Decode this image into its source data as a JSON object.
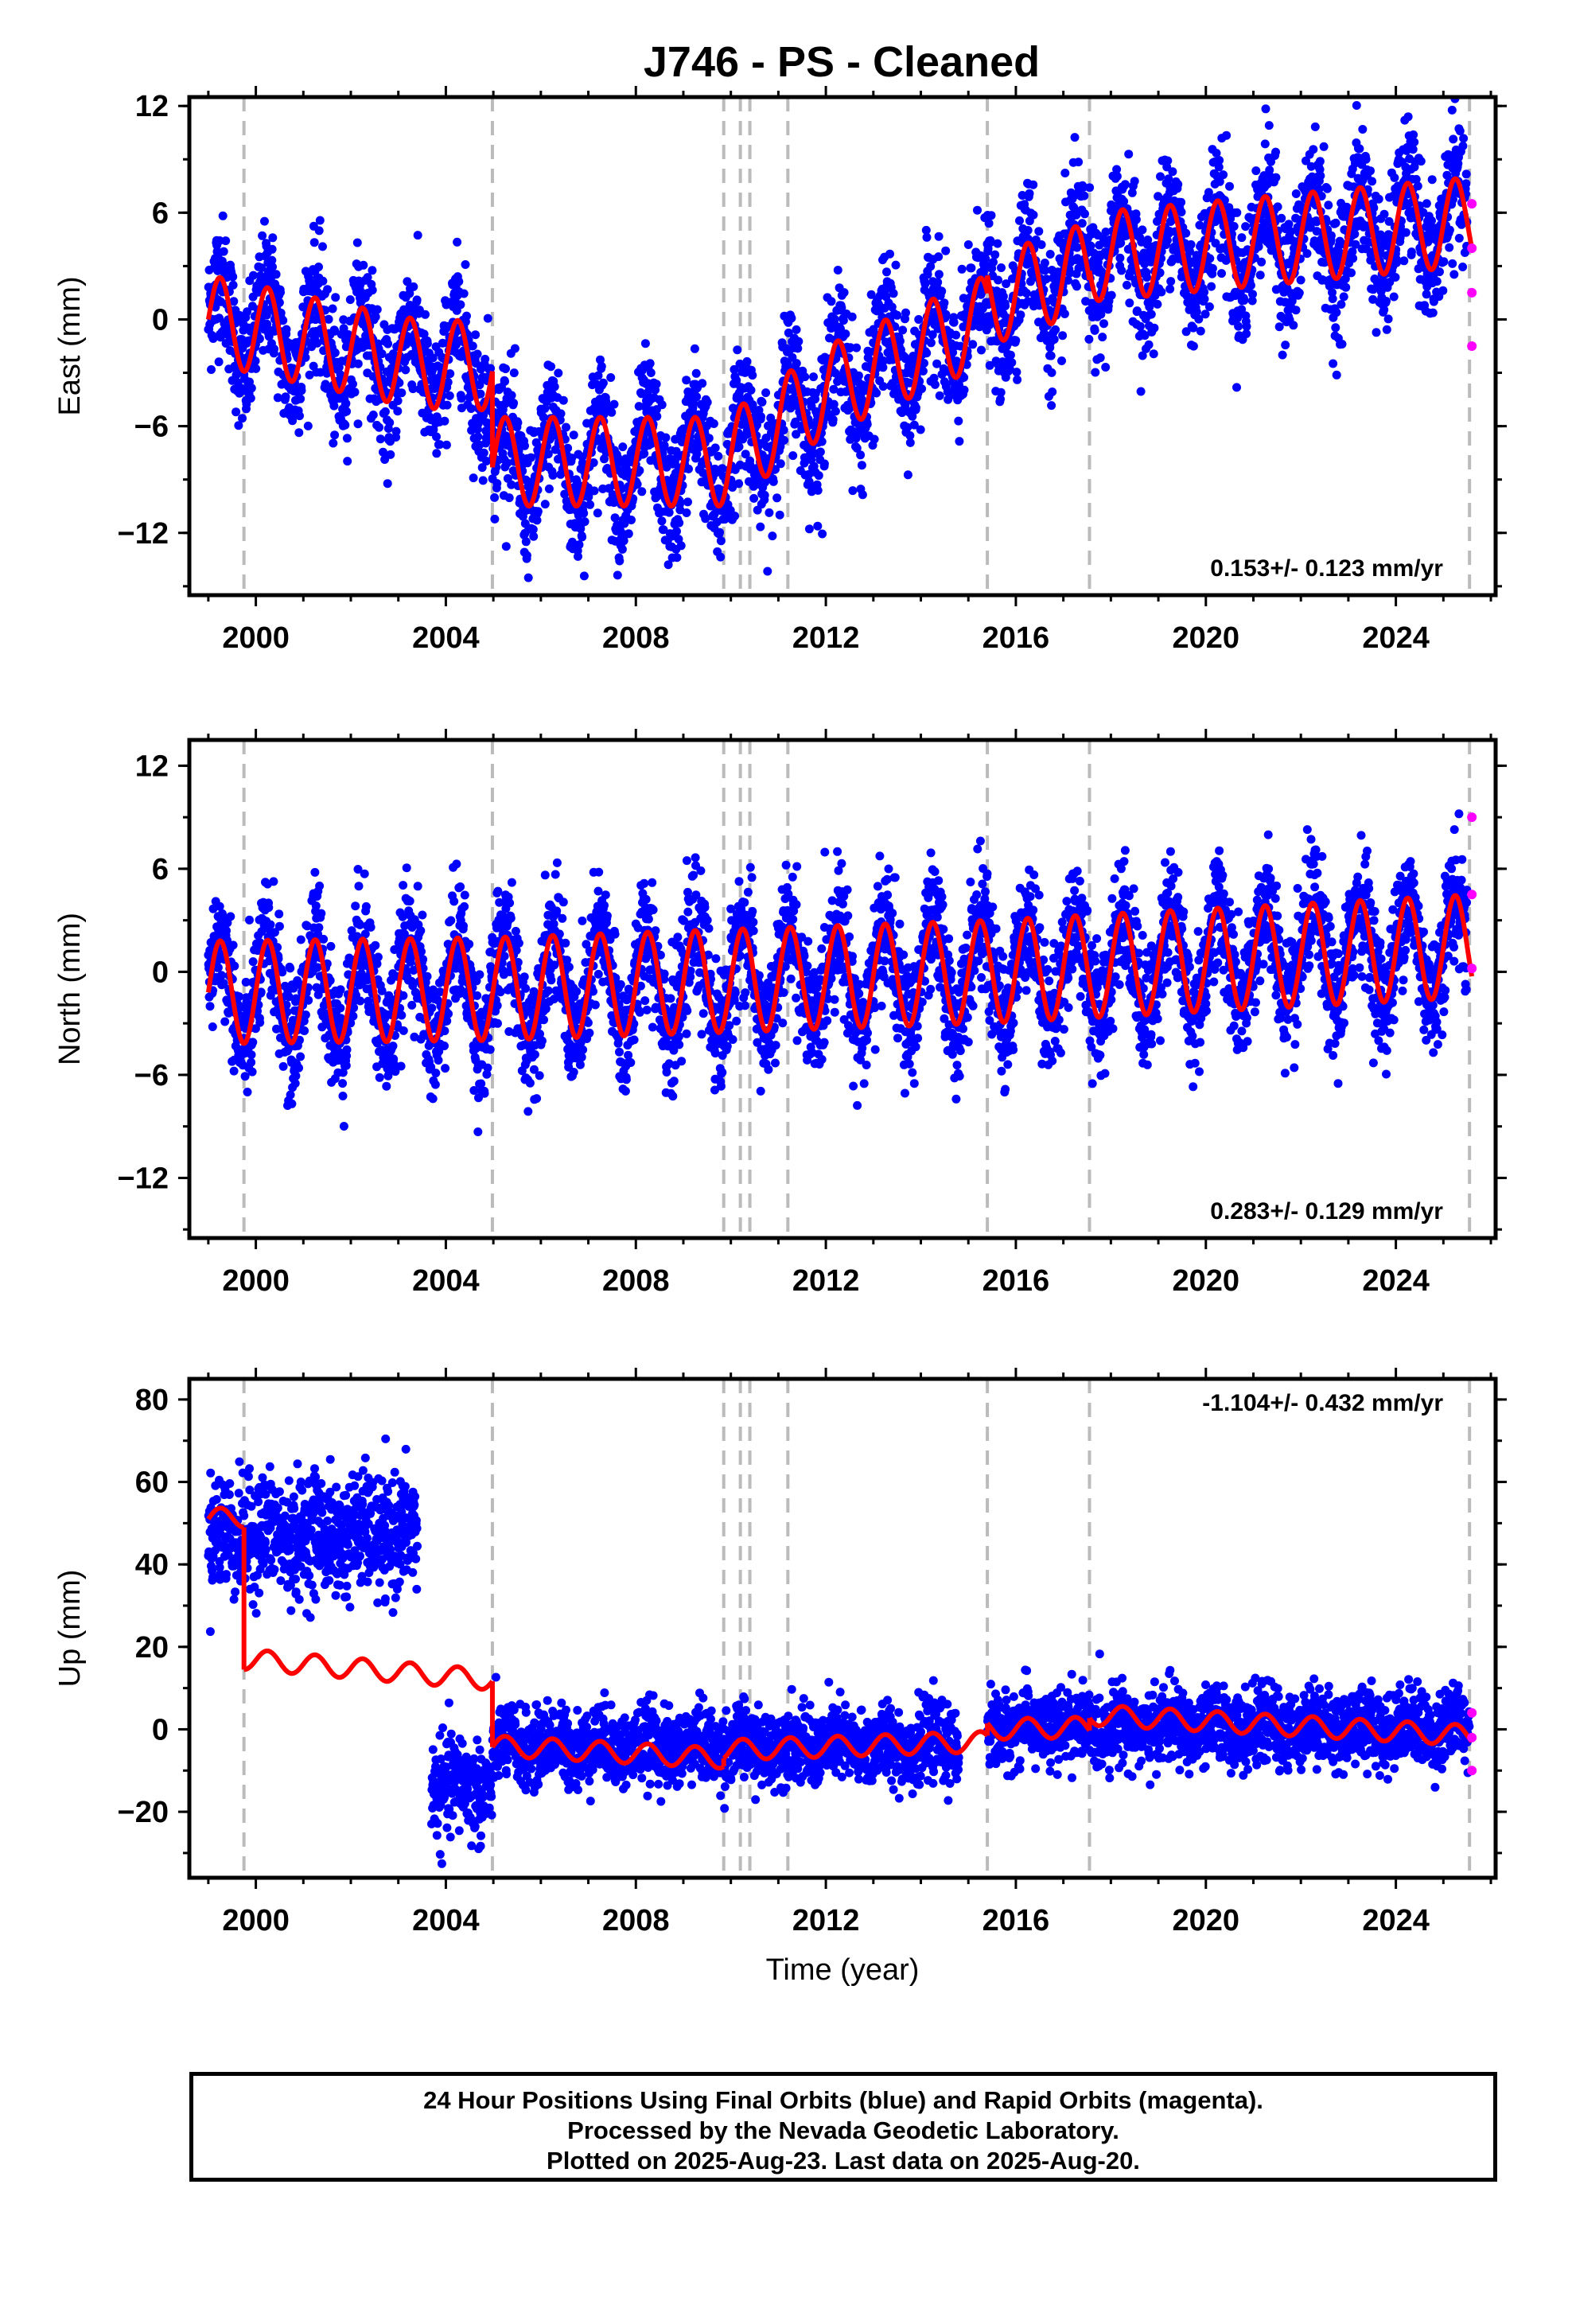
{
  "title": "J746  - PS - Cleaned",
  "footer": {
    "line1": "24 Hour Positions Using Final Orbits (blue) and Rapid Orbits (magenta).",
    "line2": "Processed by the Nevada Geodetic Laboratory.",
    "line3": "Plotted on 2025-Aug-23. Last data on 2025-Aug-20."
  },
  "colors": {
    "final": "#0000ff",
    "rapid": "#ff00ff",
    "model": "#ff0000",
    "steps": "#bbbbbb"
  },
  "chart_data": [
    {
      "type": "scatter",
      "ylabel": "East (mm)",
      "xlabel": "",
      "xlim": [
        1998.6,
        2026.1
      ],
      "ylim": [
        -15.5,
        12.5
      ],
      "xticks": [
        2000,
        2004,
        2008,
        2012,
        2016,
        2020,
        2024
      ],
      "yticks": [
        -12,
        -6,
        0,
        6,
        12
      ],
      "rate": "0.153+/- 0.123 mm/yr",
      "rate_position": "bottom-right",
      "step_epochs": [
        1999.75,
        2004.98,
        2009.85,
        2010.2,
        2010.4,
        2011.2,
        2015.4,
        2017.55,
        2025.55
      ],
      "model": {
        "annual_amplitude": 2.5,
        "segments": [
          {
            "x": [
              1999.0,
              2003.4
            ],
            "y": [
              0.0,
              -2.5
            ]
          },
          {
            "x": [
              2003.4,
              2004.98
            ],
            "y": [
              -2.5,
              -2.6
            ]
          },
          {
            "x": [
              2004.98,
              2009.85
            ],
            "y": [
              -8.0,
              -8.0
            ]
          },
          {
            "x": [
              2009.85,
              2012.0
            ],
            "y": [
              -8.0,
              -4.0
            ]
          },
          {
            "x": [
              2012.0,
              2015.4
            ],
            "y": [
              -4.0,
              0.0
            ]
          },
          {
            "x": [
              2015.4,
              2017.55
            ],
            "y": [
              1.0,
              3.0
            ]
          },
          {
            "x": [
              2017.55,
              2025.6
            ],
            "y": [
              3.5,
              5.5
            ]
          }
        ]
      },
      "scatter_noise": 1.8,
      "rapid_points": [
        {
          "x": 2025.6,
          "y": 6.5
        },
        {
          "x": 2025.6,
          "y": 4.0
        },
        {
          "x": 2025.6,
          "y": 1.5
        },
        {
          "x": 2025.6,
          "y": -1.5
        }
      ]
    },
    {
      "type": "scatter",
      "ylabel": "North (mm)",
      "xlabel": "",
      "xlim": [
        1998.6,
        2026.1
      ],
      "ylim": [
        -15.5,
        13.5
      ],
      "xticks": [
        2000,
        2004,
        2008,
        2012,
        2016,
        2020,
        2024
      ],
      "yticks": [
        -12,
        -6,
        0,
        6,
        12
      ],
      "rate": "0.283+/- 0.129 mm/yr",
      "rate_position": "bottom-right",
      "step_epochs": [
        1999.75,
        2004.98,
        2009.85,
        2010.2,
        2010.4,
        2011.2,
        2015.4,
        2017.55,
        2025.55
      ],
      "model": {
        "annual_amplitude": 3.0,
        "segments": [
          {
            "x": [
              1999.0,
              2004.98
            ],
            "y": [
              -1.2,
              -1.0
            ]
          },
          {
            "x": [
              2004.98,
              2015.4
            ],
            "y": [
              -1.0,
              0.0
            ]
          },
          {
            "x": [
              2015.4,
              2025.6
            ],
            "y": [
              0.0,
              1.5
            ]
          }
        ]
      },
      "scatter_noise": 1.8,
      "rapid_points": [
        {
          "x": 2025.6,
          "y": 9.0
        },
        {
          "x": 2025.6,
          "y": 4.5
        },
        {
          "x": 2025.6,
          "y": 0.2
        }
      ]
    },
    {
      "type": "scatter",
      "ylabel": "Up (mm)",
      "xlabel": "Time (year)",
      "xlim": [
        1998.6,
        2026.1
      ],
      "ylim": [
        -36,
        85
      ],
      "xticks": [
        2000,
        2004,
        2008,
        2012,
        2016,
        2020,
        2024
      ],
      "yticks": [
        -20,
        0,
        20,
        40,
        60,
        80
      ],
      "rate": "-1.104+/- 0.432 mm/yr",
      "rate_position": "top-right",
      "step_epochs": [
        1999.75,
        2004.98,
        2009.85,
        2010.2,
        2010.4,
        2011.2,
        2015.4,
        2017.55,
        2025.55
      ],
      "model": {
        "annual_amplitude": 2.5,
        "segments": [
          {
            "x": [
              1999.0,
              1999.75
            ],
            "y": [
              51.0,
              51.5
            ]
          },
          {
            "x": [
              1999.75,
              2004.98
            ],
            "y": [
              17.0,
              12.0
            ]
          },
          {
            "x": [
              2004.98,
              2009.85
            ],
            "y": [
              -4.0,
              -7.0
            ]
          },
          {
            "x": [
              2009.85,
              2015.4
            ],
            "y": [
              -5.0,
              -3.0
            ]
          },
          {
            "x": [
              2015.4,
              2017.55
            ],
            "y": [
              0.0,
              0.5
            ]
          },
          {
            "x": [
              2017.55,
              2025.6
            ],
            "y": [
              3.5,
              -1.5
            ]
          }
        ]
      },
      "data_segments": [
        {
          "x": [
            1999.0,
            2003.4
          ],
          "mean": 47.0,
          "noise": 7.0
        },
        {
          "x": [
            2003.7,
            2005.0
          ],
          "mean": -14.0,
          "noise": 6.0
        },
        {
          "x": [
            2005.0,
            2014.8
          ],
          "mean": -4.0,
          "noise": 4.5
        },
        {
          "x": [
            2015.4,
            2025.55
          ],
          "mean": 0.5,
          "noise": 4.5
        }
      ],
      "rapid_points": [
        {
          "x": 2025.6,
          "y": 4.0
        },
        {
          "x": 2025.6,
          "y": -2.0
        },
        {
          "x": 2025.6,
          "y": -10.0
        }
      ]
    }
  ]
}
